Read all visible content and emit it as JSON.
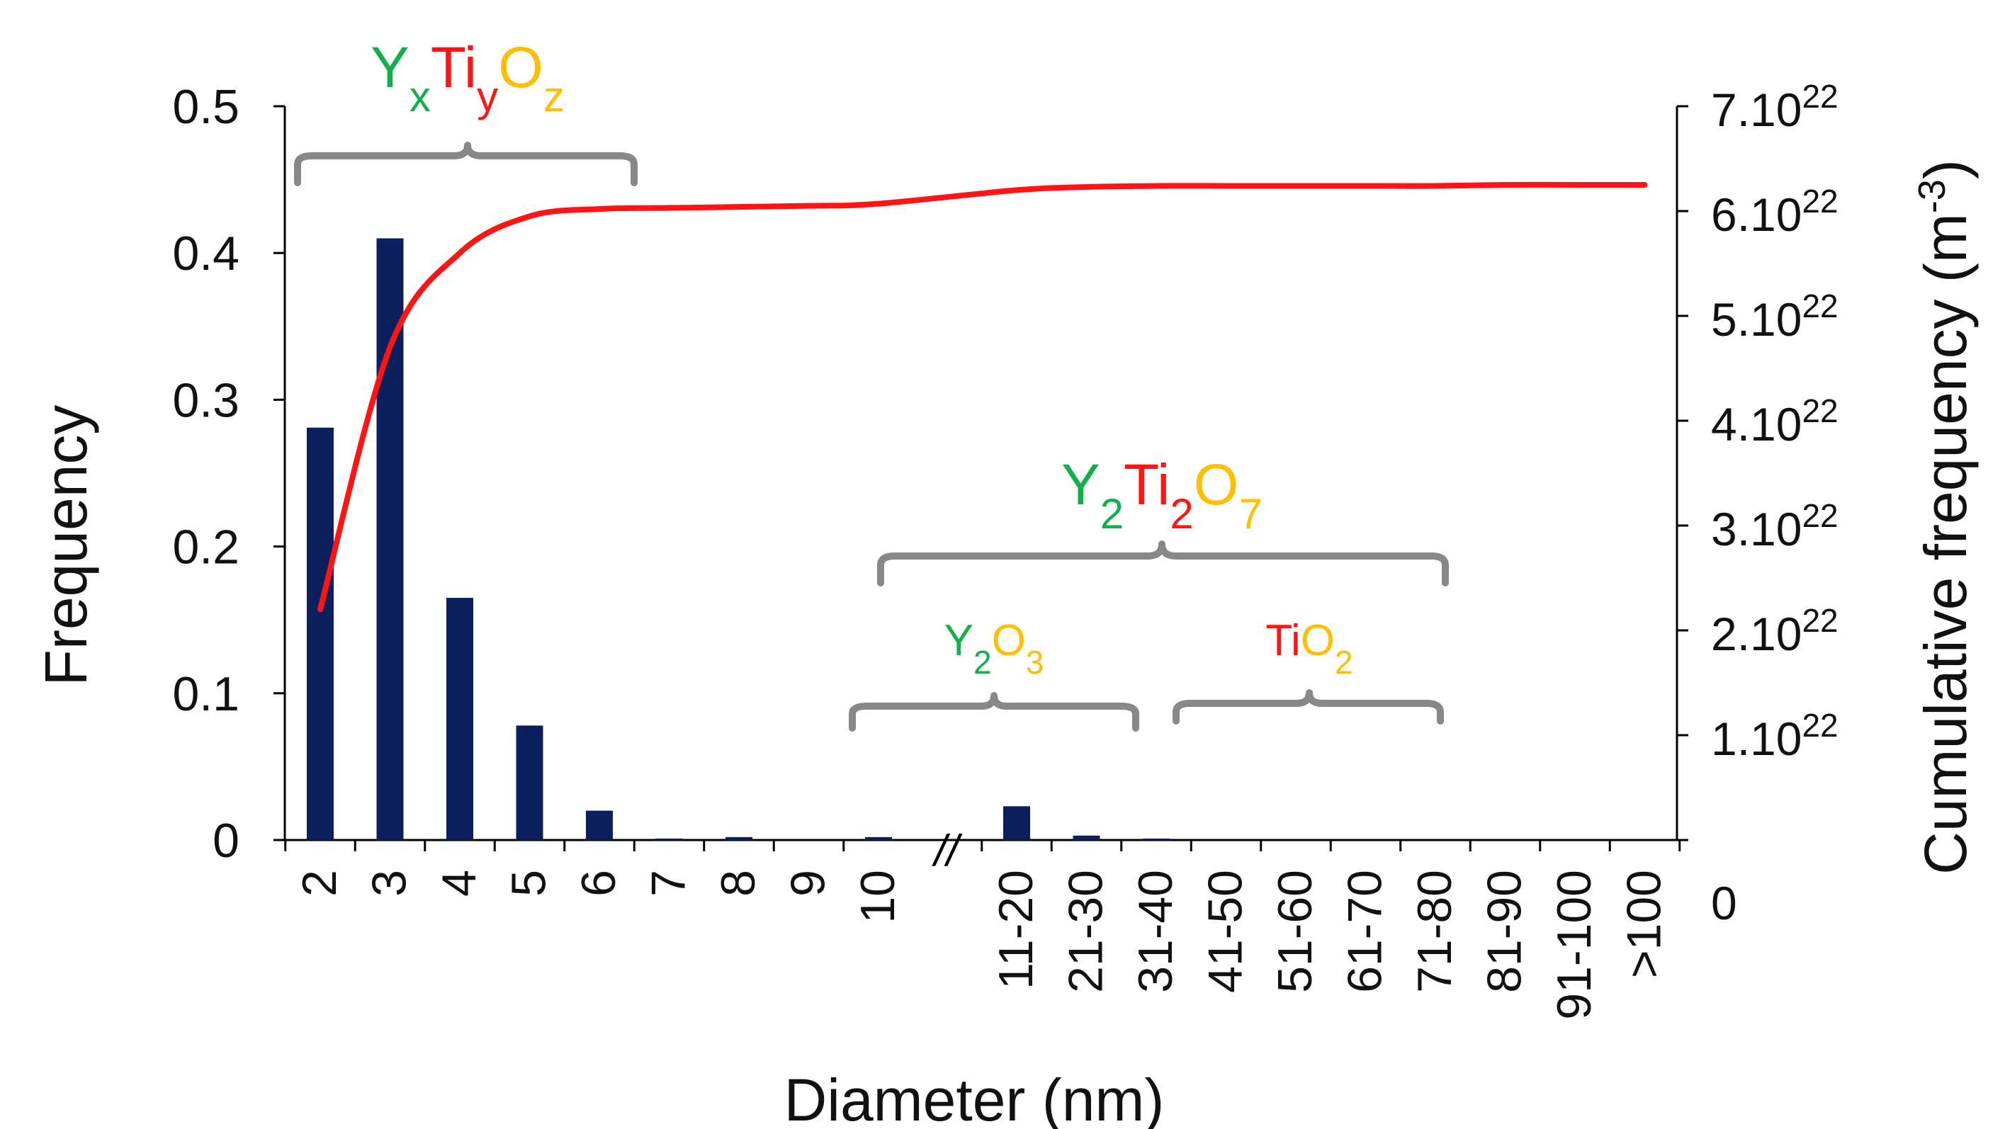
{
  "colors": {
    "bar": "#0b1f5e",
    "cumulative_line": "#ff1414",
    "bracket": "#888888",
    "yttrium": "#12b04a",
    "titanium": "#ff1414",
    "oxygen": "#ffbf00"
  },
  "axes": {
    "x_label": "Diameter (nm)",
    "y_label": "Frequency",
    "y2_label_base": "Cumulative frequency (m",
    "y2_label_exp": "-3",
    "y2_label_close": ")",
    "break_mark": "//"
  },
  "y2_ticks": [
    {
      "base": "0",
      "exp": ""
    },
    {
      "base": "1.10",
      "exp": "22"
    },
    {
      "base": "2.10",
      "exp": "22"
    },
    {
      "base": "3.10",
      "exp": "22"
    },
    {
      "base": "4.10",
      "exp": "22"
    },
    {
      "base": "5.10",
      "exp": "22"
    },
    {
      "base": "6.10",
      "exp": "22"
    },
    {
      "base": "7.10",
      "exp": "22"
    }
  ],
  "annotations": {
    "yxtiyoz": {
      "Y": "Y",
      "Y_sub": "x",
      "Ti": "Ti",
      "Ti_sub": "y",
      "O": "O",
      "O_sub": "z"
    },
    "y2ti2o7": {
      "Y": "Y",
      "Y_sub": "2",
      "Ti": "Ti",
      "Ti_sub": "2",
      "O": "O",
      "O_sub": "7"
    },
    "y2o3": {
      "Y": "Y",
      "Y_sub": "2",
      "O": "O",
      "O_sub": "3"
    },
    "tio2": {
      "Ti": "Ti",
      "O": "O",
      "O_sub": "2"
    }
  },
  "chart_data": {
    "type": "bar",
    "categories": [
      "2",
      "3",
      "4",
      "5",
      "6",
      "7",
      "8",
      "9",
      "10",
      "11-20",
      "21-30",
      "31-40",
      "41-50",
      "51-60",
      "61-70",
      "71-80",
      "81-90",
      "91-100",
      ">100"
    ],
    "series": [
      {
        "values": [
          0.281,
          0.41,
          0.165,
          0.078,
          0.02,
          0.001,
          0.002,
          0,
          0.002,
          0.023,
          0.003,
          0.001,
          0,
          0,
          0,
          0,
          0,
          0,
          0
        ]
      },
      {
        "type": "line",
        "axis": "right",
        "values": [
          2.2e+22,
          4.7e+22,
          5.6e+22,
          5.95e+22,
          6.02e+22,
          6.03e+22,
          6.04e+22,
          6.05e+22,
          6.07e+22,
          6.2e+22,
          6.23e+22,
          6.24e+22,
          6.24e+22,
          6.24e+22,
          6.24e+22,
          6.24e+22,
          6.25e+22,
          6.25e+22,
          6.25e+22
        ]
      }
    ],
    "xlabel": "Diameter (nm)",
    "ylabel": "Frequency",
    "y2label": "Cumulative frequency (m-3)",
    "ylim": [
      0,
      0.5
    ],
    "y2lim": [
      0,
      7e+22
    ],
    "yticks": [
      "0",
      "0.1",
      "0.2",
      "0.3",
      "0.4",
      "0.5"
    ],
    "grid": false
  }
}
